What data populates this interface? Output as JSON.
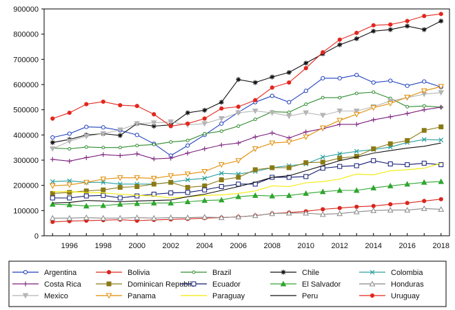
{
  "chart_data": {
    "type": "line",
    "title": "",
    "xlabel": "",
    "ylabel": "",
    "x": [
      1995,
      1996,
      1997,
      1998,
      1999,
      2000,
      2001,
      2002,
      2003,
      2004,
      2005,
      2006,
      2007,
      2008,
      2009,
      2010,
      2011,
      2012,
      2013,
      2014,
      2015,
      2016,
      2017,
      2018
    ],
    "x_tick_labels": [
      "1996",
      "1998",
      "2000",
      "2002",
      "2004",
      "2006",
      "2008",
      "2010",
      "2012",
      "2014",
      "2016",
      "2018"
    ],
    "x_tick_values": [
      1996,
      1998,
      2000,
      2002,
      2004,
      2006,
      2008,
      2010,
      2012,
      2014,
      2016,
      2018
    ],
    "xlim": [
      1994.5,
      2018.5
    ],
    "ylim": [
      0,
      900000
    ],
    "y_tick_values": [
      0,
      100000,
      200000,
      300000,
      400000,
      500000,
      600000,
      700000,
      800000,
      900000
    ],
    "y_tick_labels": [
      "0",
      "100000",
      "200000",
      "300000",
      "400000",
      "500000",
      "600000",
      "700000",
      "800000",
      "900000"
    ],
    "grid": false,
    "legend_position": "bottom",
    "series": [
      {
        "name": "Argentina",
        "color": "#1f3fbf",
        "marker": "circle-open",
        "values": [
          390000,
          405000,
          432000,
          430000,
          418000,
          400000,
          365000,
          318000,
          358000,
          400000,
          445000,
          490000,
          530000,
          555000,
          530000,
          575000,
          625000,
          625000,
          638000,
          608000,
          615000,
          595000,
          612000,
          590000
        ]
      },
      {
        "name": "Bolivia",
        "color": "#d9261c",
        "marker": "circle-filled",
        "values": [
          55000,
          58000,
          60000,
          62000,
          64000,
          60000,
          63000,
          65000,
          67000,
          70000,
          72000,
          75000,
          80000,
          88000,
          92000,
          97000,
          105000,
          110000,
          115000,
          118000,
          125000,
          130000,
          138000,
          145000
        ]
      },
      {
        "name": "Brazil",
        "color": "#2e8b2e",
        "marker": "circle-small",
        "values": [
          348000,
          345000,
          352000,
          350000,
          350000,
          358000,
          362000,
          372000,
          378000,
          405000,
          415000,
          435000,
          462000,
          492000,
          490000,
          522000,
          548000,
          548000,
          565000,
          570000,
          545000,
          512000,
          515000,
          510000
        ]
      },
      {
        "name": "Chile",
        "color": "#111111",
        "marker": "star",
        "values": [
          370000,
          382000,
          400000,
          405000,
          398000,
          445000,
          435000,
          440000,
          488000,
          498000,
          530000,
          620000,
          608000,
          630000,
          648000,
          685000,
          722000,
          758000,
          782000,
          812000,
          818000,
          832000,
          818000,
          852000
        ]
      },
      {
        "name": "Colombia",
        "color": "#2a9d9d",
        "marker": "x",
        "values": [
          215000,
          218000,
          212000,
          212000,
          205000,
          205000,
          205000,
          212000,
          222000,
          228000,
          248000,
          245000,
          255000,
          270000,
          278000,
          285000,
          312000,
          325000,
          335000,
          342000,
          352000,
          370000,
          382000,
          380000
        ]
      },
      {
        "name": "Costa Rica",
        "color": "#7b1f7b",
        "marker": "plus",
        "values": [
          303000,
          296000,
          310000,
          322000,
          318000,
          325000,
          305000,
          308000,
          328000,
          345000,
          360000,
          368000,
          392000,
          408000,
          388000,
          412000,
          425000,
          442000,
          442000,
          460000,
          472000,
          485000,
          500000,
          510000
        ]
      },
      {
        "name": "Dominican Republic",
        "color": "#8a7a16",
        "marker": "square-filled",
        "values": [
          168000,
          172000,
          178000,
          182000,
          192000,
          195000,
          205000,
          212000,
          192000,
          198000,
          222000,
          232000,
          262000,
          270000,
          270000,
          290000,
          292000,
          308000,
          315000,
          345000,
          365000,
          378000,
          418000,
          432000
        ]
      },
      {
        "name": "Ecuador",
        "color": "#0e1870",
        "marker": "square-open",
        "values": [
          150000,
          150000,
          158000,
          160000,
          150000,
          158000,
          165000,
          170000,
          172000,
          182000,
          195000,
          205000,
          205000,
          232000,
          232000,
          235000,
          268000,
          275000,
          278000,
          298000,
          285000,
          282000,
          288000,
          282000
        ]
      },
      {
        "name": "El Salvador",
        "color": "#2fa52f",
        "marker": "triangle-filled",
        "values": [
          125000,
          123000,
          118000,
          120000,
          125000,
          128000,
          130000,
          130000,
          135000,
          140000,
          142000,
          155000,
          160000,
          158000,
          160000,
          168000,
          175000,
          180000,
          180000,
          190000,
          198000,
          205000,
          212000,
          215000
        ]
      },
      {
        "name": "Honduras",
        "color": "#888888",
        "marker": "triangle-open",
        "values": [
          70000,
          70000,
          72000,
          70000,
          70000,
          72000,
          70000,
          72000,
          72000,
          74000,
          72000,
          75000,
          80000,
          88000,
          90000,
          90000,
          85000,
          88000,
          95000,
          100000,
          102000,
          102000,
          108000,
          105000
        ]
      },
      {
        "name": "Mexico",
        "color": "#b5b5b5",
        "marker": "triangle-down",
        "values": [
          345000,
          375000,
          395000,
          405000,
          420000,
          445000,
          448000,
          452000,
          440000,
          445000,
          465000,
          488000,
          495000,
          488000,
          475000,
          488000,
          478000,
          495000,
          495000,
          512000,
          535000,
          548000,
          562000,
          568000
        ]
      },
      {
        "name": "Panama",
        "color": "#e08a00",
        "marker": "triangle-down-open",
        "values": [
          198000,
          202000,
          212000,
          225000,
          230000,
          230000,
          228000,
          238000,
          245000,
          255000,
          282000,
          298000,
          345000,
          368000,
          372000,
          392000,
          428000,
          458000,
          482000,
          508000,
          525000,
          550000,
          575000,
          592000
        ]
      },
      {
        "name": "Paraguay",
        "color": "#f2ea00",
        "marker": "none",
        "values": [
          175000,
          175000,
          172000,
          170000,
          165000,
          160000,
          158000,
          150000,
          155000,
          160000,
          162000,
          168000,
          178000,
          198000,
          195000,
          210000,
          215000,
          225000,
          245000,
          242000,
          258000,
          262000,
          268000,
          288000
        ]
      },
      {
        "name": "Peru",
        "color": "#111111",
        "marker": "none",
        "values": [
          130000,
          132000,
          140000,
          138000,
          135000,
          138000,
          140000,
          142000,
          155000,
          165000,
          180000,
          195000,
          212000,
          232000,
          238000,
          258000,
          278000,
          298000,
          312000,
          328000,
          338000,
          348000,
          355000,
          368000
        ]
      },
      {
        "name": "Uruguay",
        "color": "#e3271e",
        "marker": "circle-filled",
        "values": [
          465000,
          488000,
          522000,
          532000,
          518000,
          515000,
          482000,
          435000,
          445000,
          465000,
          505000,
          512000,
          538000,
          588000,
          608000,
          665000,
          728000,
          778000,
          805000,
          835000,
          838000,
          852000,
          872000,
          880000
        ]
      }
    ]
  }
}
